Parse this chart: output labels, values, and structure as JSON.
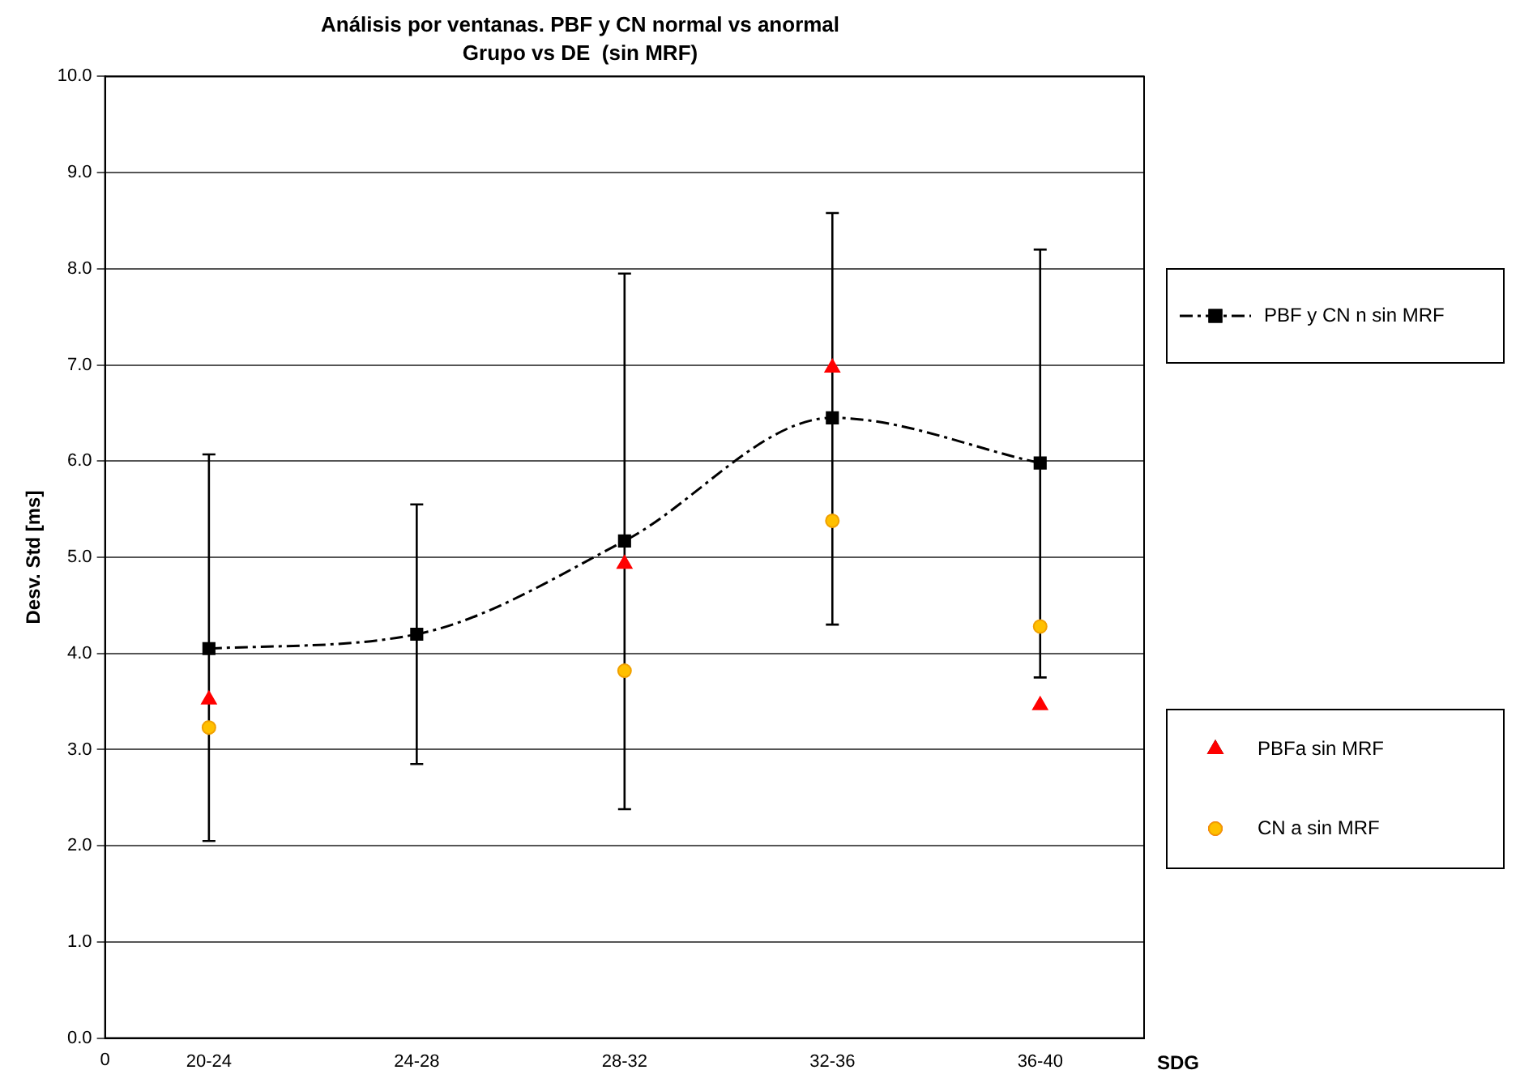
{
  "chart_data": {
    "type": "line",
    "title": "Análisis por ventanas. PBF y CN normal vs anormal",
    "subtitle": "Grupo vs DE  (sin MRF)",
    "xlabel": "SDG",
    "ylabel": "Desv. Std [ms]",
    "categories": [
      "20-24",
      "24-28",
      "28-32",
      "32-36",
      "36-40"
    ],
    "annotations": [
      "0"
    ],
    "ylim": [
      0,
      10
    ],
    "yticks": [
      {
        "value": 0,
        "label": "0.0"
      },
      {
        "value": 1,
        "label": "1.0"
      },
      {
        "value": 2,
        "label": "2.0"
      },
      {
        "value": 3,
        "label": "3.0"
      },
      {
        "value": 4,
        "label": "4.0"
      },
      {
        "value": 5,
        "label": "5.0"
      },
      {
        "value": 6,
        "label": "6.0"
      },
      {
        "value": 7,
        "label": "7.0"
      },
      {
        "value": 8,
        "label": "8.0"
      },
      {
        "value": 9,
        "label": "9.0"
      },
      {
        "value": 10,
        "label": "10.0"
      }
    ],
    "grid": "y",
    "legend": "right",
    "series": [
      {
        "name": "PBF y CN n sin MRF",
        "color": "#000000",
        "marker": "square",
        "line_style": "dashed",
        "values": [
          4.05,
          4.2,
          5.17,
          6.45,
          5.98
        ],
        "errors": [
          [
            2.05,
            6.07
          ],
          [
            2.85,
            5.55
          ],
          [
            2.38,
            7.95
          ],
          [
            4.3,
            8.58
          ],
          [
            3.75,
            8.2
          ]
        ]
      },
      {
        "name": "PBFa sin MRF",
        "type": "scatter",
        "color": "#ff0000",
        "marker": "triangle",
        "values": [
          3.52,
          null,
          4.93,
          6.97,
          3.46
        ]
      },
      {
        "name": "CN a sin MRF",
        "type": "scatter",
        "color": "#ffc000",
        "marker": "circle",
        "values": [
          3.23,
          null,
          3.82,
          5.38,
          4.28
        ]
      }
    ]
  }
}
